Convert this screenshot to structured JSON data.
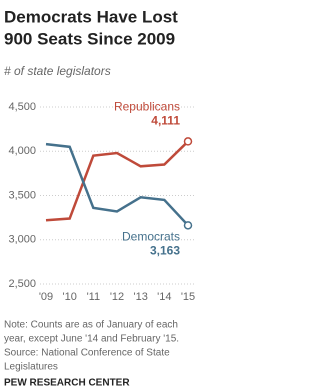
{
  "chart_data": {
    "type": "line",
    "title": [
      "Democrats Have Lost",
      "900 Seats Since 2009"
    ],
    "subtitle": "# of state legislators",
    "categories": [
      "'09",
      "'10",
      "'11",
      "'12",
      "'13",
      "'14",
      "'15"
    ],
    "series": [
      {
        "name": "Republicans",
        "color": "#bf4a3a",
        "values": [
          3220,
          3240,
          3950,
          3980,
          3830,
          3850,
          4111
        ],
        "value_labels": [
          null,
          null,
          null,
          null,
          null,
          null,
          "4,111"
        ]
      },
      {
        "name": "Democrats",
        "color": "#45718c",
        "values": [
          4080,
          4050,
          3360,
          3320,
          3480,
          3450,
          3163
        ],
        "value_labels": [
          null,
          null,
          null,
          null,
          null,
          null,
          "3,163"
        ]
      }
    ],
    "ylim": [
      2500,
      4500
    ],
    "yticks": [
      {
        "value": 2500,
        "label": "2,500"
      },
      {
        "value": 3000,
        "label": "3,000"
      },
      {
        "value": 3500,
        "label": "3,500"
      },
      {
        "value": 4000,
        "label": "4,000"
      },
      {
        "value": 4500,
        "label": "4,500"
      }
    ],
    "grid": true,
    "notes": [
      "Note: Counts are as of January of each",
      "year, except June '14 and February '15.",
      "Source: National Conference of State",
      "Legislatures"
    ],
    "credit": "PEW RESEARCH CENTER"
  }
}
